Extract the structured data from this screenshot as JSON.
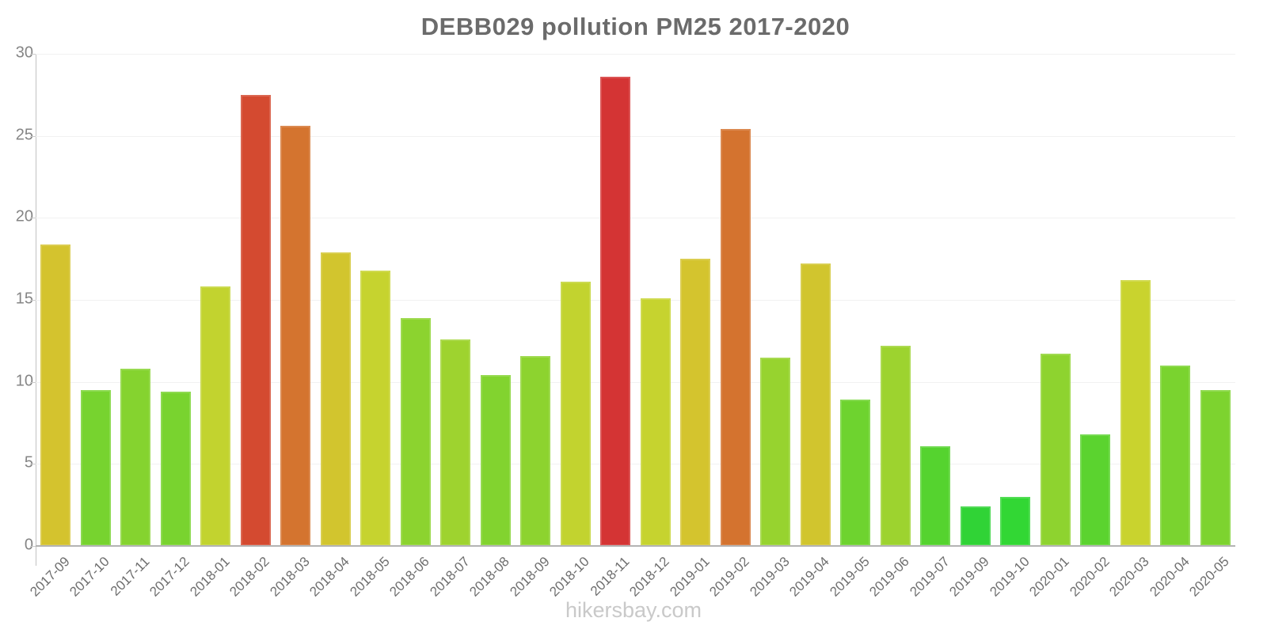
{
  "title": "DEBB029 pollution PM25 2017-2020",
  "footer": "hikersbay.com",
  "colors": {
    "background": "#ffffff",
    "title_text": "#6b6b6b",
    "y_label_text": "#858585",
    "x_label_text": "#6e6e6e",
    "gridline": "#f1f1f1",
    "y_axis_line": "#c2c2c2",
    "x_axis_line": "#b3b3b3",
    "footer_text": "#c9c9c9"
  },
  "chart_data": {
    "type": "bar",
    "title": "DEBB029 pollution PM25 2017-2020",
    "xlabel": "",
    "ylabel": "",
    "ylim": [
      0,
      30
    ],
    "yticks": [
      0,
      5,
      10,
      15,
      20,
      25,
      30
    ],
    "grid": true,
    "legend": "none",
    "categories": [
      "2017-09",
      "2017-10",
      "2017-11",
      "2017-12",
      "2018-01",
      "2018-02",
      "2018-03",
      "2018-04",
      "2018-05",
      "2018-06",
      "2018-07",
      "2018-08",
      "2018-09",
      "2018-10",
      "2018-11",
      "2018-12",
      "2019-01",
      "2019-02",
      "2019-03",
      "2019-04",
      "2019-05",
      "2019-06",
      "2019-07",
      "2019-09",
      "2019-10",
      "2020-01",
      "2020-02",
      "2020-03",
      "2020-04",
      "2020-05"
    ],
    "values": [
      18.4,
      9.5,
      10.8,
      9.4,
      15.8,
      27.5,
      25.6,
      17.9,
      16.8,
      13.9,
      12.6,
      10.4,
      11.6,
      16.1,
      28.6,
      15.1,
      17.5,
      25.4,
      11.5,
      17.2,
      8.9,
      12.2,
      6.1,
      2.4,
      3.0,
      11.7,
      6.8,
      16.2,
      11.0,
      9.5
    ],
    "bar_colors": [
      "#d4c32e",
      "#77d32f",
      "#85d32f",
      "#79d32f",
      "#c2d32f",
      "#d44a30",
      "#d4742f",
      "#d2c52e",
      "#c6d32f",
      "#8cd32f",
      "#9ed32f",
      "#82d32f",
      "#8dd32f",
      "#c2d32f",
      "#d43434",
      "#c6d32f",
      "#d4c42e",
      "#d4732f",
      "#97d32f",
      "#d1c52e",
      "#6ed32f",
      "#9dd32f",
      "#55d32f",
      "#30d336",
      "#32d734",
      "#8ed32f",
      "#5bd32f",
      "#c9d32e",
      "#7ad32f",
      "#7dd32f"
    ]
  }
}
